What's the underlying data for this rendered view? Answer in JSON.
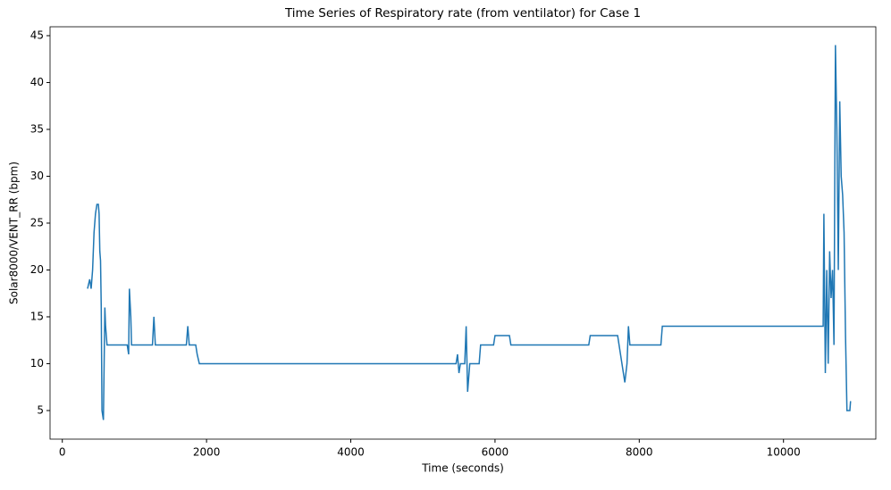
{
  "chart_data": {
    "type": "line",
    "title": "Time Series of Respiratory rate (from ventilator) for Case 1",
    "x_label": "Time (seconds)",
    "y_label": "Solar8000/VENT_RR (bpm)",
    "x": [
      350,
      380,
      400,
      420,
      440,
      460,
      480,
      500,
      510,
      520,
      530,
      540,
      550,
      570,
      580,
      590,
      600,
      620,
      900,
      920,
      930,
      950,
      960,
      1250,
      1270,
      1290,
      1720,
      1740,
      1760,
      1850,
      1870,
      1900,
      5460,
      5480,
      5500,
      5520,
      5580,
      5600,
      5620,
      5650,
      5780,
      5800,
      5980,
      6000,
      6200,
      6220,
      7300,
      7320,
      7700,
      7720,
      7800,
      7830,
      7850,
      7870,
      8300,
      8320,
      10550,
      10560,
      10580,
      10600,
      10620,
      10640,
      10660,
      10680,
      10700,
      10720,
      10740,
      10760,
      10780,
      10800,
      10820,
      10840,
      10860,
      10880,
      10920,
      10930
    ],
    "series": [
      {
        "name": "Solar8000/VENT_RR",
        "color": "#1f77b4",
        "values": [
          18,
          19,
          18,
          20,
          24,
          26,
          27,
          27,
          26,
          22,
          21,
          16,
          5,
          4,
          10,
          16,
          14,
          12,
          12,
          11,
          18,
          15,
          12,
          12,
          15,
          12,
          12,
          14,
          12,
          12,
          11,
          10,
          10,
          11,
          9,
          10,
          10,
          14,
          7,
          10,
          10,
          12,
          12,
          13,
          13,
          12,
          12,
          13,
          13,
          12,
          8,
          10,
          14,
          12,
          12,
          14,
          14,
          26,
          9,
          20,
          10,
          22,
          17,
          20,
          12,
          44,
          35,
          20,
          38,
          30,
          28,
          24,
          13,
          5,
          5,
          6
        ]
      }
    ],
    "xlim": [
      -170,
      11280
    ],
    "ylim": [
      1.95,
      45.95
    ],
    "xticks": [
      0,
      2000,
      4000,
      6000,
      8000,
      10000
    ],
    "yticks": [
      5,
      10,
      15,
      20,
      25,
      30,
      35,
      40,
      45
    ],
    "grid": false
  }
}
